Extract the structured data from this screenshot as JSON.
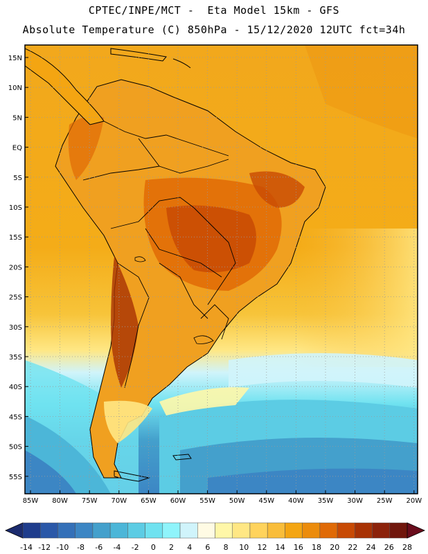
{
  "header": {
    "line1": "CPTEC/INPE/MCT -  Eta Model 15km - GFS",
    "line2": "Absolute Temperature (C) 850hPa - 15/12/2020 12UTC fct=34h"
  },
  "axes": {
    "lat_labels": [
      "15N",
      "10N",
      "5N",
      "EQ",
      "5S",
      "10S",
      "15S",
      "20S",
      "25S",
      "30S",
      "35S",
      "40S",
      "45S",
      "50S",
      "55S"
    ],
    "lon_labels": [
      "85W",
      "80W",
      "75W",
      "70W",
      "65W",
      "60W",
      "55W",
      "50W",
      "45W",
      "40W",
      "35W",
      "30W",
      "25W",
      "20W"
    ]
  },
  "colorbar": {
    "ticks": [
      "-14",
      "-12",
      "-10",
      "-8",
      "-6",
      "-4",
      "-2",
      "0",
      "2",
      "4",
      "6",
      "8",
      "10",
      "12",
      "14",
      "16",
      "18",
      "20",
      "22",
      "24",
      "26",
      "28"
    ],
    "colors": [
      "#1e3c8c",
      "#2a58a8",
      "#3470b8",
      "#3c86c4",
      "#44a0cc",
      "#4cb6d8",
      "#5ccce4",
      "#6fe2f0",
      "#8ff4fb",
      "#d0f4fb",
      "#fffbe4",
      "#fff7a8",
      "#ffe784",
      "#ffd35c",
      "#f9bd3a",
      "#f4a512",
      "#ec8c0c",
      "#e06a06",
      "#c84a04",
      "#a83204",
      "#8c220a",
      "#70160c"
    ],
    "under_color": "#1b2b6e",
    "over_color": "#6a0c1c"
  }
}
